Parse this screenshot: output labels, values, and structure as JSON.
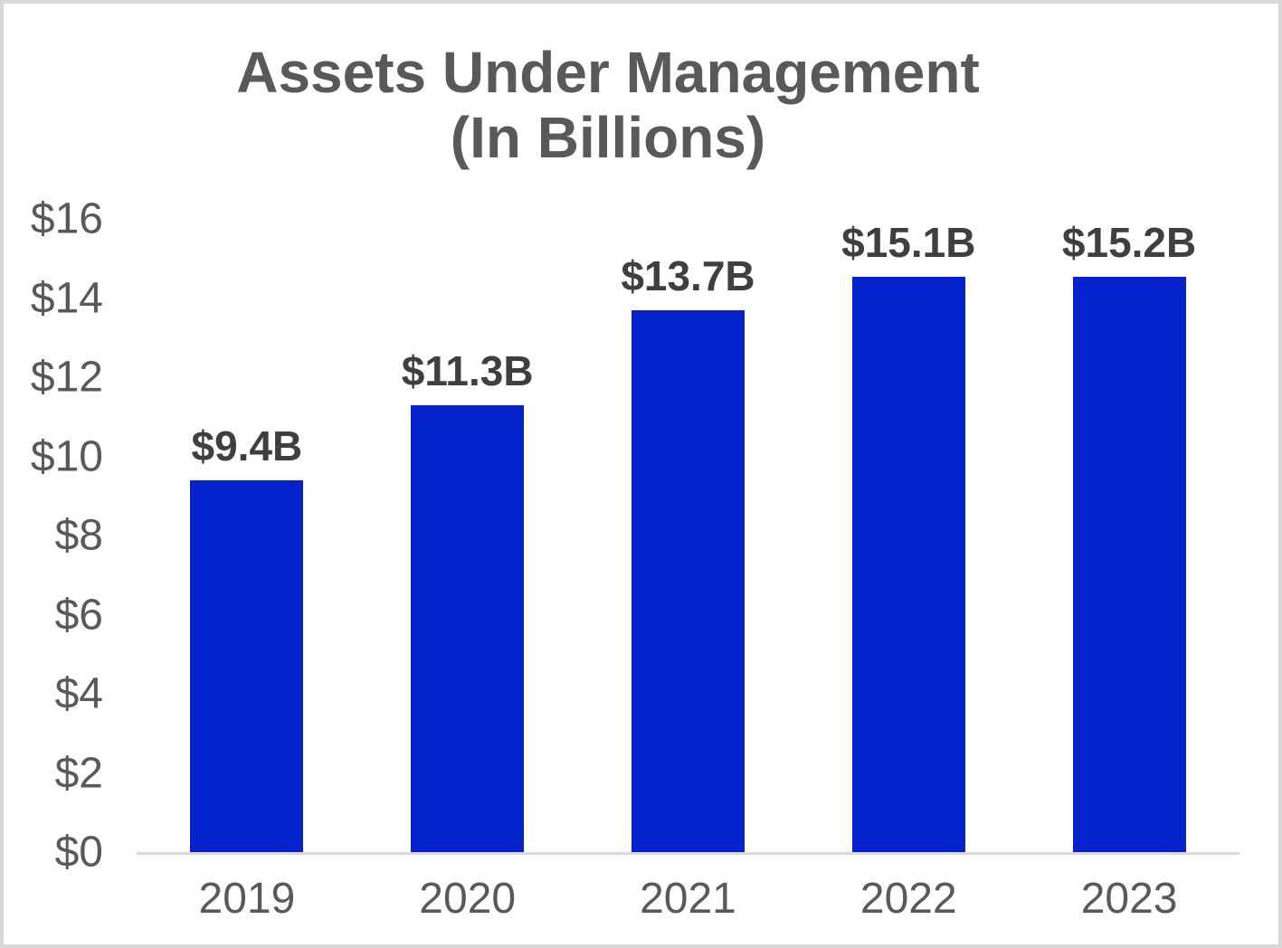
{
  "chart_data": {
    "type": "bar",
    "title": "Assets Under Management (In Billions)",
    "title_line1": "Assets Under Management",
    "title_line2": "(In Billions)",
    "categories": [
      "2019",
      "2020",
      "2021",
      "2022",
      "2023"
    ],
    "values": [
      9.4,
      11.3,
      13.7,
      15.1,
      15.2
    ],
    "bar_labels": [
      "$9.4B",
      "$11.3B",
      "$13.7B",
      "$15.1B",
      "$15.2B"
    ],
    "y_tick_labels": [
      "$0",
      "$2",
      "$4",
      "$6",
      "$8",
      "$10",
      "$12",
      "$14",
      "$16"
    ],
    "y_tick_values": [
      0,
      2,
      4,
      6,
      8,
      10,
      12,
      14,
      16
    ],
    "ylim": [
      0,
      16
    ],
    "xlabel": "",
    "ylabel": "",
    "grid": false,
    "legend_position": "none",
    "colors": {
      "bar": "#0523CD",
      "title": "#595959",
      "axis_labels": "#595959",
      "value_labels": "#3F3F3F",
      "axis_line": "#D9D9D9",
      "frame_border": "#D8D8D8",
      "background": "#FFFFFF"
    }
  }
}
